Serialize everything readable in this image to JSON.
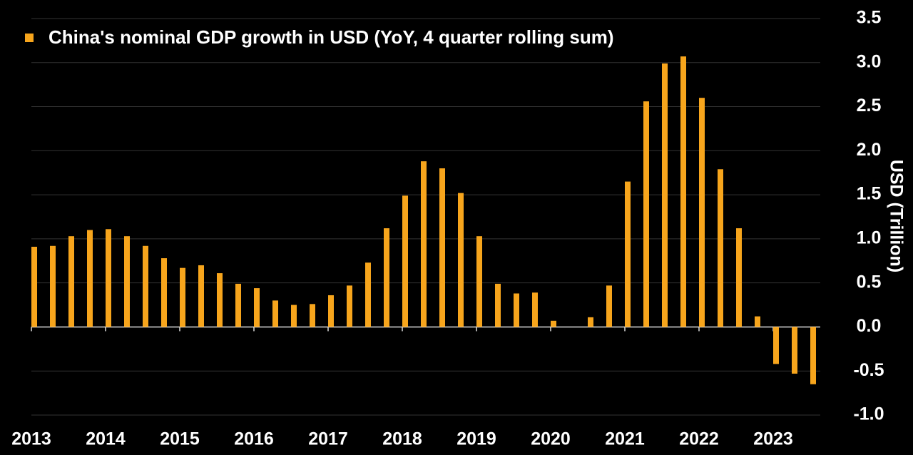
{
  "chart_data": {
    "type": "bar",
    "y_label": "USD (Trillion)",
    "categories": [
      "2013",
      null,
      null,
      null,
      "2014",
      null,
      null,
      null,
      "2015",
      null,
      null,
      null,
      "2016",
      null,
      null,
      null,
      "2017",
      null,
      null,
      null,
      "2018",
      null,
      null,
      null,
      "2019",
      null,
      null,
      null,
      "2020",
      null,
      null,
      null,
      "2021",
      null,
      null,
      null,
      "2022",
      null,
      null,
      null,
      "2023",
      null,
      null
    ],
    "series": [
      {
        "name": "China's nominal GDP growth in USD (YoY, 4 quarter rolling sum)",
        "color": "#f7a51c",
        "values": [
          0.91,
          0.92,
          1.03,
          1.1,
          1.11,
          1.03,
          0.92,
          0.78,
          0.67,
          0.7,
          0.61,
          0.49,
          0.44,
          0.3,
          0.25,
          0.26,
          0.36,
          0.47,
          0.73,
          1.12,
          1.49,
          1.88,
          1.8,
          1.52,
          1.03,
          0.49,
          0.38,
          0.39,
          0.07,
          0,
          0.11,
          0.47,
          1.65,
          2.56,
          2.99,
          3.07,
          2.6,
          1.79,
          1.12,
          0.12,
          -0.42,
          -0.53,
          -0.65
        ]
      }
    ],
    "ylim": [
      -1.0,
      3.5
    ],
    "yticks": [
      {
        "value": -1.0,
        "label": "-1.0"
      },
      -0.5,
      {
        "value": 0,
        "label": "0.0"
      },
      0.5,
      {
        "value": 1.0,
        "label": "1.0"
      },
      1.5,
      {
        "value": 2.0,
        "label": "2.0"
      },
      2.5,
      {
        "value": 3.0,
        "label": "3.0"
      },
      3.5
    ],
    "grid": true,
    "legend": "top-left"
  }
}
